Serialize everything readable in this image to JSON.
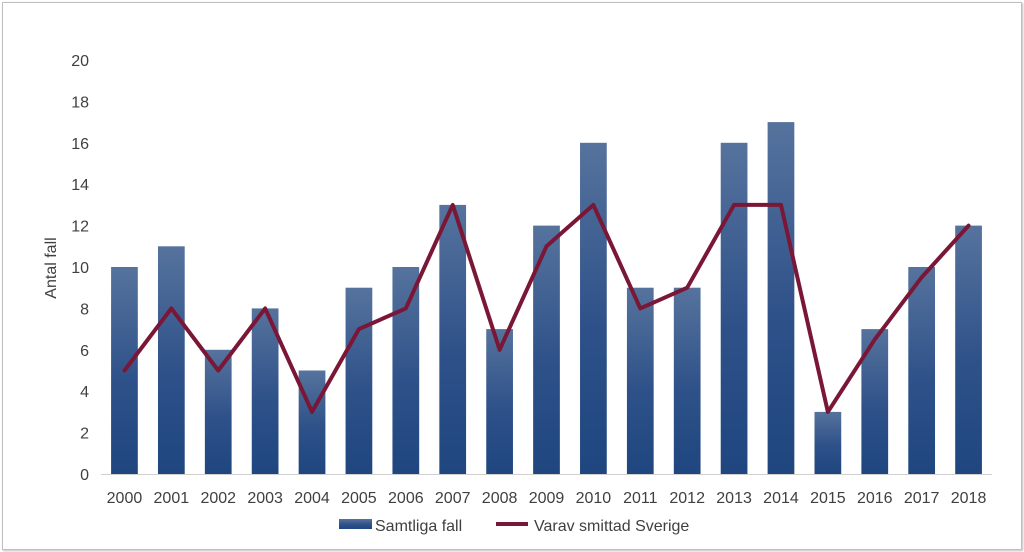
{
  "chart_data": {
    "type": "bar",
    "title": "",
    "xlabel": "",
    "ylabel": "Antal fall",
    "ylim": [
      0,
      20
    ],
    "yticks": [
      0,
      2,
      4,
      6,
      8,
      10,
      12,
      14,
      16,
      18,
      20
    ],
    "grid": false,
    "legend_position": "bottom",
    "categories": [
      "2000",
      "2001",
      "2002",
      "2003",
      "2004",
      "2005",
      "2006",
      "2007",
      "2008",
      "2009",
      "2010",
      "2011",
      "2012",
      "2013",
      "2014",
      "2015",
      "2016",
      "2017",
      "2018"
    ],
    "series": [
      {
        "name": "Samtliga fall",
        "type": "bar",
        "color": "#2a4f85",
        "values": [
          10,
          11,
          6,
          8,
          5,
          9,
          10,
          13,
          7,
          12,
          16,
          9,
          9,
          16,
          17,
          3,
          7,
          10,
          12
        ]
      },
      {
        "name": "Varav smittad Sverige",
        "type": "line",
        "color": "#7b1736",
        "values": [
          5,
          8,
          5,
          8,
          3,
          7,
          8,
          13,
          6,
          11,
          13,
          8,
          9,
          13,
          13,
          3,
          6.5,
          9.5,
          12
        ]
      }
    ]
  }
}
